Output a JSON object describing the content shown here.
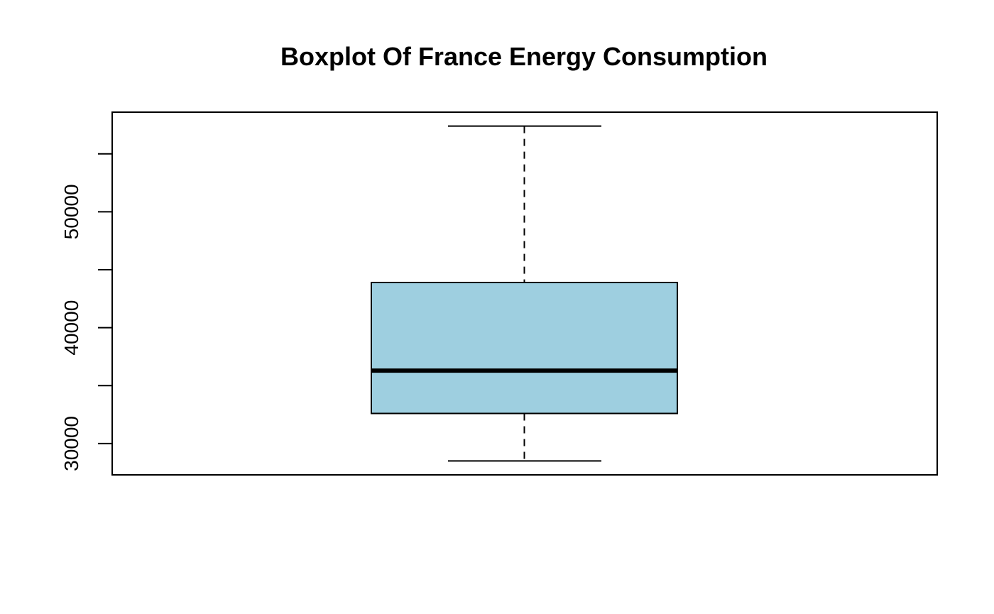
{
  "chart_data": {
    "type": "boxplot",
    "title": "Boxplot Of France Energy Consumption",
    "xlabel": "",
    "ylabel": "",
    "ylim": [
      27300,
      58600
    ],
    "yticks": [
      30000,
      35000,
      40000,
      45000,
      50000,
      55000
    ],
    "ytick_labels": [
      "30000",
      "",
      "40000",
      "",
      "50000",
      ""
    ],
    "box": {
      "whisker_low": 28500,
      "q1": 32600,
      "median": 36300,
      "q3": 43900,
      "whisker_high": 57400
    },
    "box_color": "#9ecfe0",
    "grid": false,
    "legend": "none"
  }
}
